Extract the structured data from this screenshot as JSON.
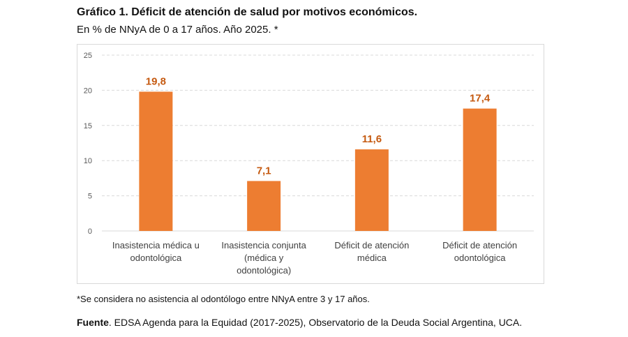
{
  "title": "Gráfico 1. Déficit de atención de salud por motivos económicos.",
  "subtitle": "En % de NNyA de 0 a 17 años. Año 2025. *",
  "note": "*Se considera no asistencia al odontólogo entre NNyA entre 3 y 17 años.",
  "source": {
    "label": "Fuente",
    "text": ". EDSA Agenda para la Equidad (2017-2025), Observatorio de la Deuda Social Argentina, UCA."
  },
  "chart_data": {
    "type": "bar",
    "categories": [
      [
        "Inasistencia médica u",
        "odontológica"
      ],
      [
        "Inasistencia conjunta",
        "(médica y",
        "odontológica)"
      ],
      [
        "Déficit de atención",
        "médica"
      ],
      [
        "Déficit de atención",
        "odontológica"
      ]
    ],
    "values": [
      19.8,
      7.1,
      11.6,
      17.4
    ],
    "data_labels": [
      "19,8",
      "7,1",
      "11,6",
      "17,4"
    ],
    "ylim": [
      0,
      25
    ],
    "yticks": [
      0,
      5,
      10,
      15,
      20,
      25
    ],
    "grid": true,
    "gridline_style": "dashed",
    "bar_color": "#ED7D31",
    "label_color": "#C55A11"
  }
}
